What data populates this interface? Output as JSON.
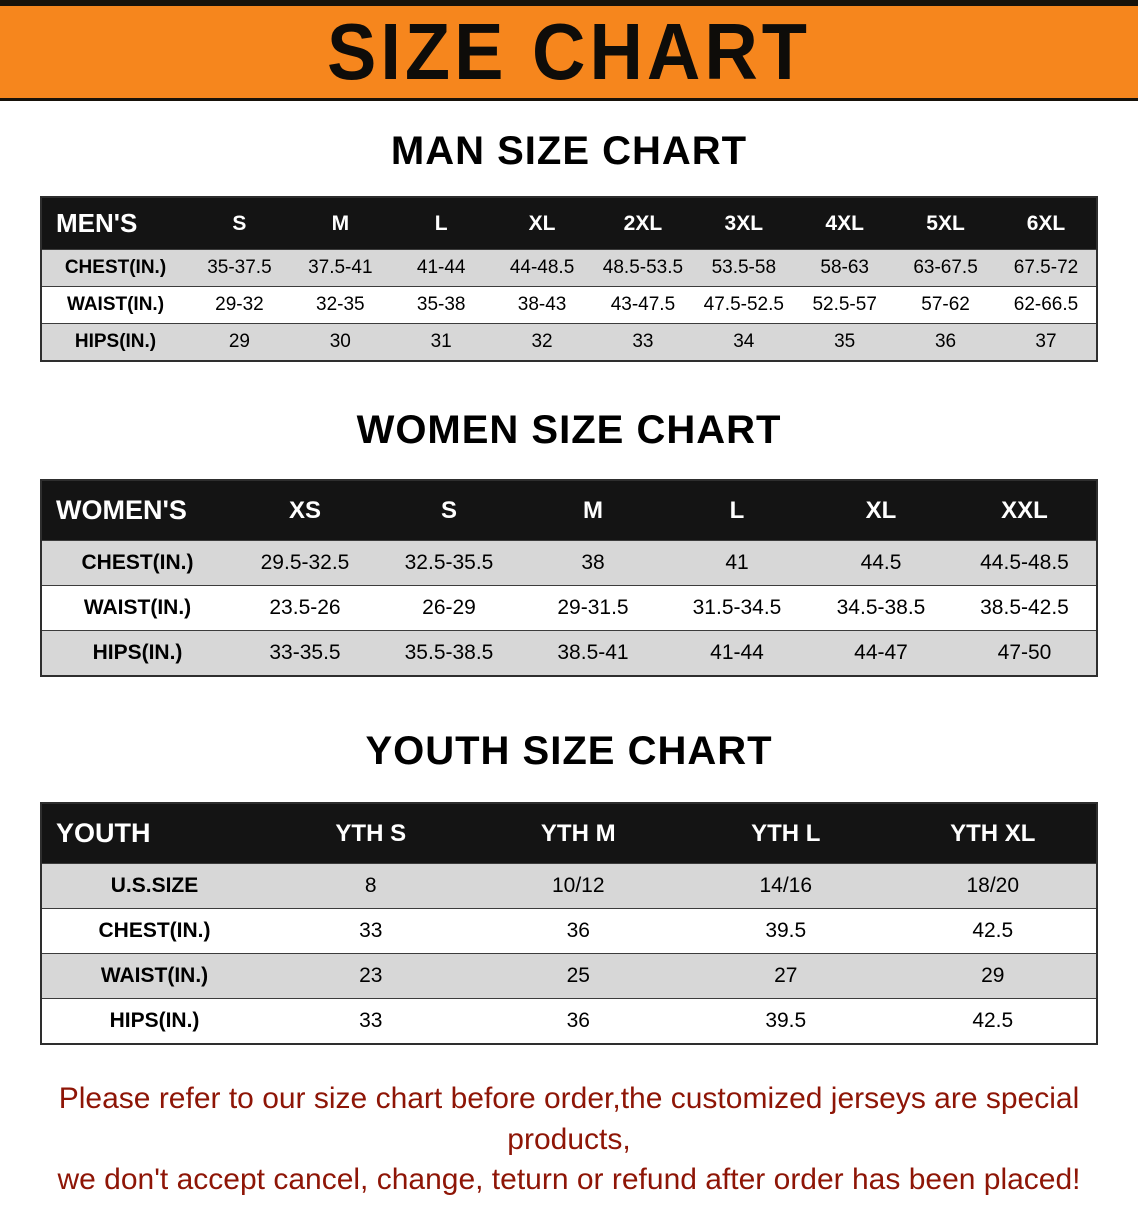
{
  "banner": {
    "title": "SIZE CHART"
  },
  "colors": {
    "banner_bg": "#f6861d",
    "header_bg": "#141414",
    "row_alt": "#d7d7d7",
    "note_color": "#8e1506"
  },
  "sections": [
    {
      "heading": "MAN SIZE CHART",
      "table": {
        "header": [
          "MEN'S",
          "S",
          "M",
          "L",
          "XL",
          "2XL",
          "3XL",
          "4XL",
          "5XL",
          "6XL"
        ],
        "rows": [
          [
            "CHEST(IN.)",
            "35-37.5",
            "37.5-41",
            "41-44",
            "44-48.5",
            "48.5-53.5",
            "53.5-58",
            "58-63",
            "63-67.5",
            "67.5-72"
          ],
          [
            "WAIST(IN.)",
            "29-32",
            "32-35",
            "35-38",
            "38-43",
            "43-47.5",
            "47.5-52.5",
            "52.5-57",
            "57-62",
            "62-66.5"
          ],
          [
            "HIPS(IN.)",
            "29",
            "30",
            "31",
            "32",
            "33",
            "34",
            "35",
            "36",
            "37"
          ]
        ]
      }
    },
    {
      "heading": "WOMEN SIZE CHART",
      "table": {
        "header": [
          "WOMEN'S",
          "XS",
          "S",
          "M",
          "L",
          "XL",
          "XXL"
        ],
        "rows": [
          [
            "CHEST(IN.)",
            "29.5-32.5",
            "32.5-35.5",
            "38",
            "41",
            "44.5",
            "44.5-48.5"
          ],
          [
            "WAIST(IN.)",
            "23.5-26",
            "26-29",
            "29-31.5",
            "31.5-34.5",
            "34.5-38.5",
            "38.5-42.5"
          ],
          [
            "HIPS(IN.)",
            "33-35.5",
            "35.5-38.5",
            "38.5-41",
            "41-44",
            "44-47",
            "47-50"
          ]
        ]
      }
    },
    {
      "heading": "YOUTH SIZE CHART",
      "table": {
        "header": [
          "YOUTH",
          "YTH S",
          "YTH M",
          "YTH L",
          "YTH XL"
        ],
        "rows": [
          [
            "U.S.SIZE",
            "8",
            "10/12",
            "14/16",
            "18/20"
          ],
          [
            "CHEST(IN.)",
            "33",
            "36",
            "39.5",
            "42.5"
          ],
          [
            "WAIST(IN.)",
            "23",
            "25",
            "27",
            "29"
          ],
          [
            "HIPS(IN.)",
            "33",
            "36",
            "39.5",
            "42.5"
          ]
        ]
      }
    }
  ],
  "note": {
    "line1": "Please refer to our size chart before order,the customized jerseys are special products,",
    "line2": "we don't accept cancel, change, teturn or refund after order has been placed!"
  }
}
